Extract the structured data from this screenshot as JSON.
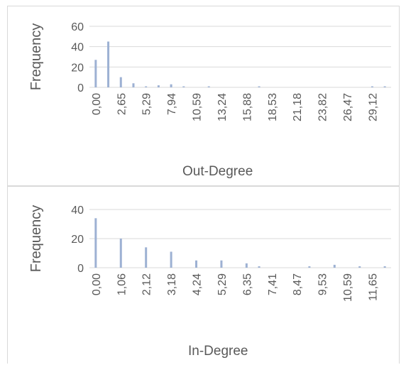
{
  "colors": {
    "bar": "#9db1d3",
    "grid": "#d9d9d9",
    "text": "#595959"
  },
  "chart_data": [
    {
      "type": "bar",
      "xlabel": "Out-Degree",
      "ylabel": "Frequency",
      "ylim": [
        0,
        60
      ],
      "yticks": [
        "0",
        "20",
        "40",
        "60"
      ],
      "grid": true,
      "legend": "none",
      "tick_labels": [
        "0,00",
        "2,65",
        "5,29",
        "7,94",
        "10,59",
        "13,24",
        "15,88",
        "18,53",
        "21,18",
        "23,82",
        "26,47",
        "29,12"
      ],
      "x": [
        0,
        1.32,
        2.65,
        3.97,
        5.29,
        6.62,
        7.94,
        9.26,
        10.59,
        11.91,
        13.24,
        14.56,
        15.88,
        17.21,
        18.53,
        19.85,
        21.18,
        22.5,
        23.82,
        25.15,
        26.47,
        27.79,
        29.12,
        30.44
      ],
      "values": [
        27,
        45,
        10,
        4,
        1,
        2,
        3,
        1,
        0,
        1,
        0,
        0,
        0,
        1,
        0,
        0,
        0,
        0,
        0,
        0,
        0,
        0,
        1,
        1
      ]
    },
    {
      "type": "bar",
      "xlabel": "In-Degree",
      "ylabel": "Frequency",
      "ylim": [
        0,
        40
      ],
      "yticks": [
        "0",
        "20",
        "40"
      ],
      "grid": true,
      "legend": "none",
      "tick_labels": [
        "0,00",
        "1,06",
        "2,12",
        "3,18",
        "4,24",
        "5,29",
        "6,35",
        "7,41",
        "8,47",
        "9,53",
        "10,59",
        "11,65"
      ],
      "x": [
        0,
        0.53,
        1.06,
        1.59,
        2.12,
        2.65,
        3.18,
        3.71,
        4.24,
        4.76,
        5.29,
        5.82,
        6.35,
        6.88,
        7.41,
        7.94,
        8.47,
        9.0,
        9.53,
        10.06,
        10.59,
        11.12,
        11.65,
        12.18
      ],
      "values": [
        34,
        0,
        20,
        0,
        14,
        0,
        11,
        0,
        5,
        0,
        5,
        0,
        3,
        1,
        0,
        0,
        0,
        1,
        0,
        2,
        0,
        1,
        0,
        1
      ]
    }
  ]
}
